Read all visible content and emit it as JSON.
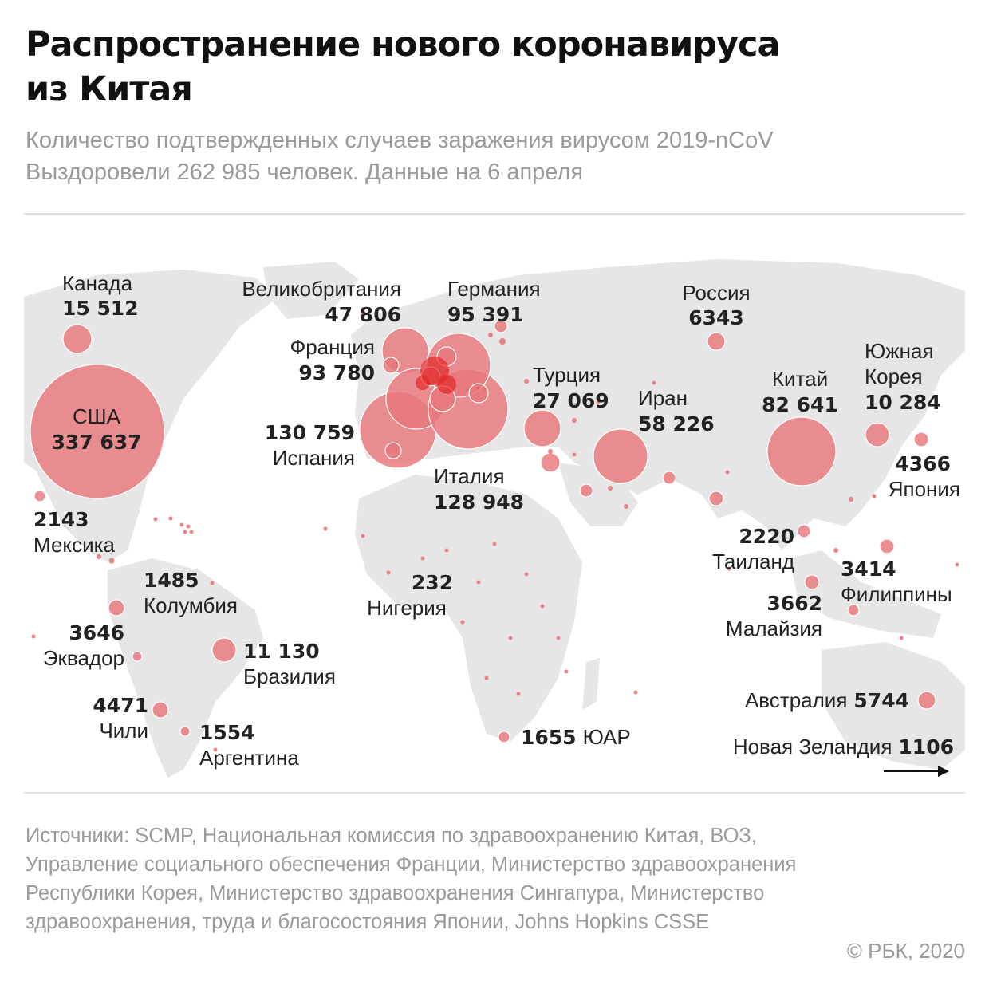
{
  "title": "Распространение нового коронавируса из Китая",
  "subtitle_line1": "Количество подтвержденных случаев заражения вирусом 2019-nCoV",
  "subtitle_line2": "Выздоровели 262 985 человек. Данные на 6 апреля",
  "colors": {
    "bubble": "#e8777b",
    "bubble_core": "#e32626",
    "land": "#e6e6e6",
    "text": "#222222",
    "muted": "#9a9a9a"
  },
  "countries": [
    {
      "name": "Канада",
      "value": "15 512",
      "cases": 15512
    },
    {
      "name": "США",
      "value": "337 637",
      "cases": 337637
    },
    {
      "name": "Мексика",
      "value": "2143",
      "cases": 2143
    },
    {
      "name": "Колумбия",
      "value": "1485",
      "cases": 1485
    },
    {
      "name": "Эквадор",
      "value": "3646",
      "cases": 3646
    },
    {
      "name": "Бразилия",
      "value": "11 130",
      "cases": 11130
    },
    {
      "name": "Чили",
      "value": "4471",
      "cases": 4471
    },
    {
      "name": "Аргентина",
      "value": "1554",
      "cases": 1554
    },
    {
      "name": "Великобритания",
      "value": "47 806",
      "cases": 47806
    },
    {
      "name": "Франция",
      "value": "93 780",
      "cases": 93780
    },
    {
      "name": "Испания",
      "value": "130 759",
      "cases": 130759
    },
    {
      "name": "Германия",
      "value": "95 391",
      "cases": 95391
    },
    {
      "name": "Италия",
      "value": "128 948",
      "cases": 128948
    },
    {
      "name": "Турция",
      "value": "27 069",
      "cases": 27069
    },
    {
      "name": "Нигерия",
      "value": "232",
      "cases": 232
    },
    {
      "name": "ЮАР",
      "value": "1655",
      "cases": 1655
    },
    {
      "name": "Иран",
      "value": "58 226",
      "cases": 58226
    },
    {
      "name": "Россия",
      "value": "6343",
      "cases": 6343
    },
    {
      "name": "Китай",
      "value": "82 641",
      "cases": 82641
    },
    {
      "name": "Южная Корея",
      "value": "10 284",
      "cases": 10284
    },
    {
      "name": "Япония",
      "value": "4366",
      "cases": 4366
    },
    {
      "name": "Таиланд",
      "value": "2220",
      "cases": 2220
    },
    {
      "name": "Малайзия",
      "value": "3662",
      "cases": 3662
    },
    {
      "name": "Филиппины",
      "value": "3414",
      "cases": 3414
    },
    {
      "name": "Австралия",
      "value": "5744",
      "cases": 5744
    },
    {
      "name": "Новая Зеландия",
      "value": "1106",
      "cases": 1106
    }
  ],
  "sources": "Источники: SCMP, Национальная комиссия по здравоохранению Китая, ВОЗ, Управление социального обеспечения Франции, Министерство здравоохранения Республики Корея, Министерство здравоохранения Сингапура, Министерство здравоохранения, труда и благосостояния Японии, Johns Hopkins CSSE",
  "copyright": "© РБК, 2020"
}
